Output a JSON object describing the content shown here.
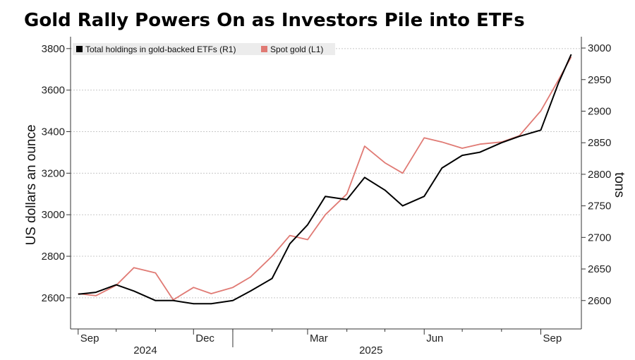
{
  "chart_data": {
    "type": "line",
    "title": "Gold Rally Powers On as Investors Pile into ETFs",
    "ylabel_left": "US dollars an ounce",
    "ylabel_right": "tons",
    "ylim_left": [
      2450,
      3830
    ],
    "ylim_right": [
      2555,
      3009
    ],
    "yticks_left": [
      "2600",
      "2800",
      "3000",
      "3200",
      "3400",
      "3600",
      "3800"
    ],
    "yticks_right": [
      "2600",
      "2650",
      "2700",
      "2750",
      "2800",
      "2850",
      "2900",
      "2950",
      "3000"
    ],
    "xticks": [
      "Sep",
      "Dec",
      "Mar",
      "Jun",
      "Sep"
    ],
    "year_labels": [
      "2024",
      "2025"
    ],
    "grid": true,
    "legend_placement": "top-left",
    "colors": {
      "holdings": "#000000",
      "spot": "#e07a74",
      "grid": "#c8c8c8"
    },
    "series": [
      {
        "name": "Total holdings in gold-backed ETFs (R1)",
        "axis": "right",
        "x": [
          "2024-09-01",
          "2024-09-15",
          "2024-10-01",
          "2024-10-15",
          "2024-11-01",
          "2024-11-15",
          "2024-12-01",
          "2024-12-15",
          "2025-01-01",
          "2025-01-15",
          "2025-02-01",
          "2025-02-15",
          "2025-03-01",
          "2025-03-15",
          "2025-04-01",
          "2025-04-15",
          "2025-05-01",
          "2025-05-15",
          "2025-06-01",
          "2025-06-15",
          "2025-07-01",
          "2025-07-15",
          "2025-08-01",
          "2025-08-15",
          "2025-09-01",
          "2025-09-15",
          "2025-09-25"
        ],
        "values": [
          2610,
          2613,
          2625,
          2615,
          2600,
          2600,
          2595,
          2595,
          2600,
          2615,
          2635,
          2690,
          2720,
          2765,
          2760,
          2795,
          2775,
          2750,
          2765,
          2810,
          2830,
          2835,
          2850,
          2860,
          2870,
          2945,
          2990
        ]
      },
      {
        "name": "Spot gold (L1)",
        "axis": "left",
        "x": [
          "2024-09-01",
          "2024-09-15",
          "2024-10-01",
          "2024-10-15",
          "2024-11-01",
          "2024-11-15",
          "2024-12-01",
          "2024-12-15",
          "2025-01-01",
          "2025-01-15",
          "2025-02-01",
          "2025-02-15",
          "2025-03-01",
          "2025-03-15",
          "2025-04-01",
          "2025-04-15",
          "2025-05-01",
          "2025-05-15",
          "2025-06-01",
          "2025-06-15",
          "2025-07-01",
          "2025-07-15",
          "2025-08-01",
          "2025-08-15",
          "2025-09-01",
          "2025-09-15",
          "2025-09-25"
        ],
        "values": [
          2620,
          2610,
          2660,
          2745,
          2720,
          2590,
          2650,
          2620,
          2650,
          2700,
          2800,
          2900,
          2880,
          3000,
          3100,
          3330,
          3250,
          3200,
          3370,
          3350,
          3320,
          3340,
          3350,
          3380,
          3500,
          3650,
          3760
        ]
      }
    ]
  }
}
